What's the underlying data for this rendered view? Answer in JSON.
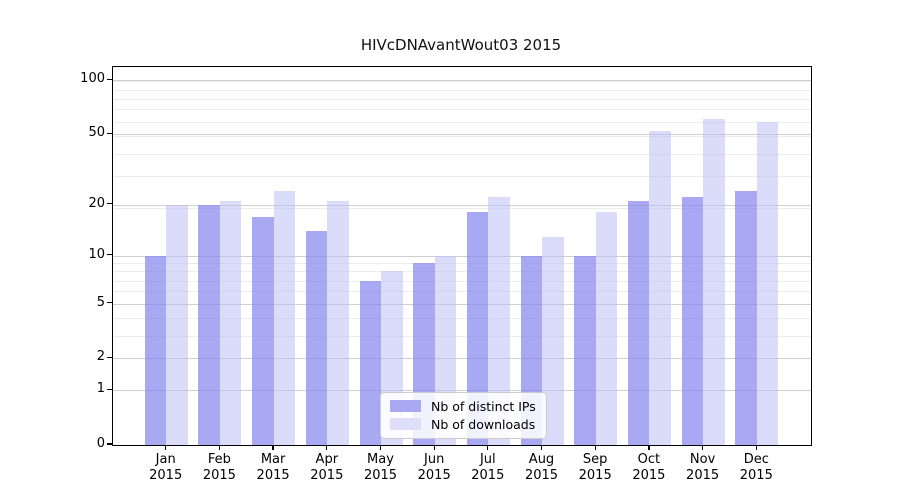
{
  "title": "HIVcDNAvantWout03 2015",
  "chart_data": {
    "type": "bar",
    "title": "HIVcDNAvantWout03 2015",
    "categories": [
      "Jan",
      "Feb",
      "Mar",
      "Apr",
      "May",
      "Jun",
      "Jul",
      "Aug",
      "Sep",
      "Oct",
      "Nov",
      "Dec"
    ],
    "year_label": "2015",
    "series": [
      {
        "name": "Nb of distinct IPs",
        "values": [
          10,
          20,
          17,
          14,
          7,
          9,
          18,
          10,
          10,
          21,
          22,
          24
        ],
        "fill": "rgba(134,134,238,0.72)",
        "swatch": "#a8a8f3"
      },
      {
        "name": "Nb of downloads",
        "values": [
          20,
          21,
          24,
          21,
          8,
          10,
          22,
          13,
          18,
          52,
          61,
          59
        ],
        "fill": "rgba(186,186,245,0.52)",
        "swatch": "#dedef9"
      }
    ],
    "y_scale": "log10(1+y)",
    "y_ticks": [
      0,
      1,
      2,
      5,
      10,
      20,
      50,
      100
    ],
    "y_minor_ticks": [
      3,
      4,
      6,
      7,
      8,
      9,
      19,
      29,
      39,
      49,
      59,
      69,
      79,
      89,
      99
    ],
    "ylim": [
      0,
      118.7
    ],
    "grid": true,
    "legend_position": "lower center",
    "colors": {
      "bar_dark": "#a8a8f3",
      "bar_light": "#dedef9",
      "grid_major": "#cfcfcf",
      "grid_minor": "#ededed",
      "spine": "#000000"
    }
  }
}
